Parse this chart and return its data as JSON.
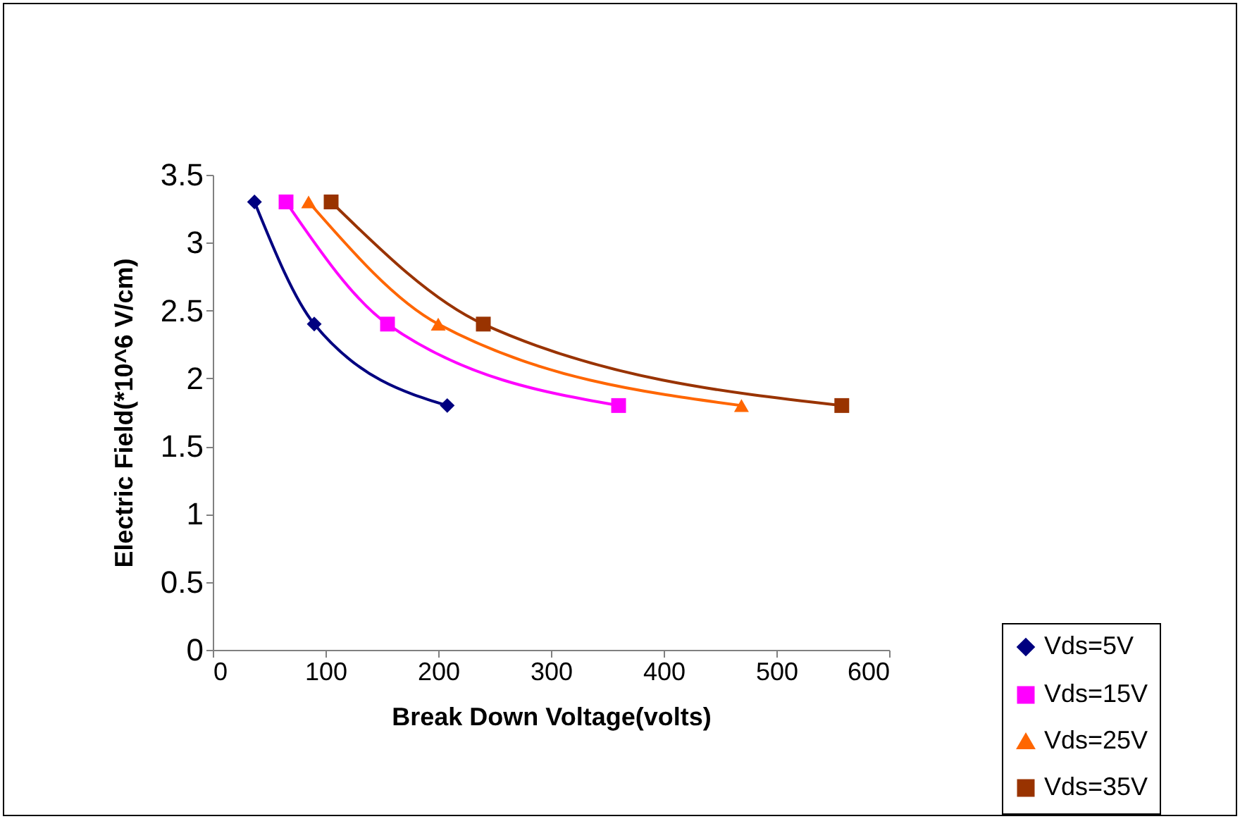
{
  "chart_data": {
    "type": "line",
    "xlabel": "Break Down Voltage(volts)",
    "ylabel": "Electric Field(*10^6 V/cm)",
    "xlim": [
      0,
      600
    ],
    "xticks": [
      0,
      100,
      200,
      300,
      400,
      500,
      600
    ],
    "ylim": [
      0,
      3.5
    ],
    "yticks": [
      0,
      0.5,
      1,
      1.5,
      2,
      2.5,
      3,
      3.5
    ],
    "grid": false,
    "legend": "bottom right",
    "line_style": "solid",
    "series": [
      {
        "name": "Vds=5V",
        "color": "#000080",
        "marker": "diamond",
        "x": [
          37,
          90,
          208
        ],
        "values": [
          3.3,
          2.4,
          1.8
        ]
      },
      {
        "name": "Vds=15V",
        "color": "#ff00ff",
        "marker": "square",
        "x": [
          65,
          155,
          360
        ],
        "values": [
          3.3,
          2.4,
          1.8
        ]
      },
      {
        "name": "Vds=25V",
        "color": "#ff6600",
        "marker": "triangle",
        "x": [
          85,
          200,
          469
        ],
        "values": [
          3.3,
          2.4,
          1.8
        ]
      },
      {
        "name": "Vds=35V",
        "color": "#993300",
        "marker": "square",
        "x": [
          105,
          240,
          558
        ],
        "values": [
          3.3,
          2.4,
          1.8
        ]
      }
    ]
  }
}
